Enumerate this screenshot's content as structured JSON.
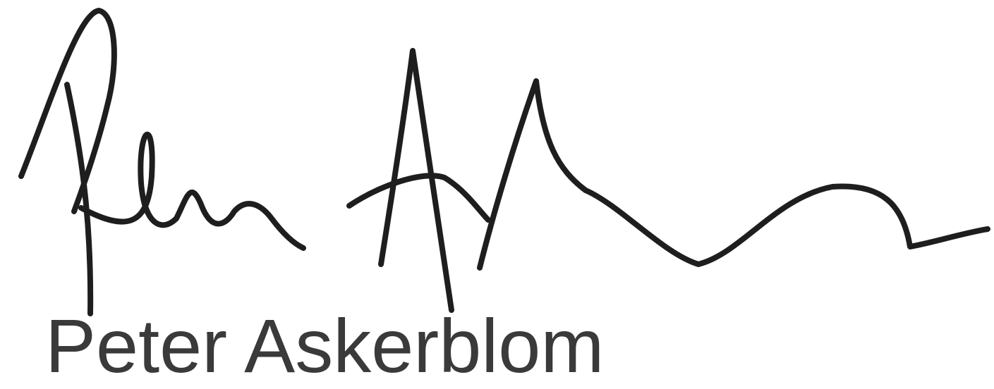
{
  "name": "Peter Askerblom"
}
